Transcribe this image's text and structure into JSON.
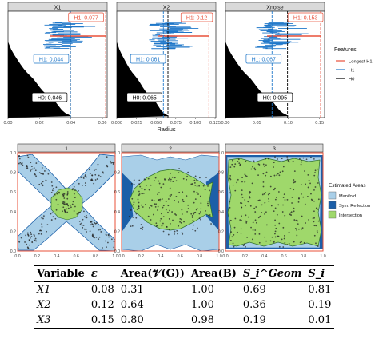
{
  "chart_data": [
    {
      "type": "area",
      "panel": "persistence",
      "facets": [
        {
          "strip": "X1",
          "x_ticks": [
            "0.00",
            "0.02",
            "0.04",
            "0.06"
          ],
          "h1_longest": "H1: 0.077",
          "h1": "H1: 0.044",
          "h0": "H0: 0.046"
        },
        {
          "strip": "X2",
          "x_ticks": [
            "0.000",
            "0.025",
            "0.050",
            "0.075",
            "0.100",
            "0.125"
          ],
          "h1_longest": "H1: 0.12",
          "h1": "H1: 0.061",
          "h0": "H0: 0.065"
        },
        {
          "strip": "Xnoise",
          "x_ticks": [
            "0.00",
            "0.05",
            "0.10",
            "0.15"
          ],
          "h1_longest": "H1: 0.153",
          "h1": "H1: 0.067",
          "h0": "H0: 0.095"
        }
      ],
      "xlabel": "Radius",
      "legend": {
        "title": "Features",
        "items": [
          "Longest H1",
          "H1",
          "H0"
        ]
      },
      "colors": {
        "longest_h1": "#e8503a",
        "h1": "#1f77c9",
        "h0": "#000000"
      }
    },
    {
      "type": "scatter",
      "panel": "estimated-areas",
      "facets": [
        {
          "strip": "1"
        },
        {
          "strip": "2"
        },
        {
          "strip": "3"
        }
      ],
      "x_ticks": [
        "0.0",
        "0.2",
        "0.4",
        "0.6",
        "0.8",
        "1.0"
      ],
      "y_ticks": [
        "0.0",
        "0.2",
        "0.4",
        "0.6",
        "0.8",
        "1.0"
      ],
      "xlim": [
        0,
        1
      ],
      "ylim": [
        0,
        1
      ],
      "legend": {
        "title": "Estimated Areas",
        "items": [
          "Manifold",
          "Sym. Reflection",
          "Intersection"
        ]
      },
      "colors": {
        "manifold": "#a9cfe8",
        "sym_reflection": "#1c5fa8",
        "intersection": "#9fd86b"
      }
    }
  ],
  "table": {
    "headers": [
      "Variable",
      "ε",
      "Area(𝒱(G))",
      "Area(B)",
      "S_i^Geom",
      "S_i"
    ],
    "rows": [
      {
        "var": "X1",
        "eps": "0.08",
        "area_v": "0.31",
        "area_b": "1.00",
        "s_geom": "0.69",
        "s": "0.81"
      },
      {
        "var": "X2",
        "eps": "0.12",
        "area_v": "0.64",
        "area_b": "1.00",
        "s_geom": "0.36",
        "s": "0.19"
      },
      {
        "var": "X3",
        "eps": "0.15",
        "area_v": "0.80",
        "area_b": "0.98",
        "s_geom": "0.19",
        "s": "0.01"
      }
    ]
  }
}
